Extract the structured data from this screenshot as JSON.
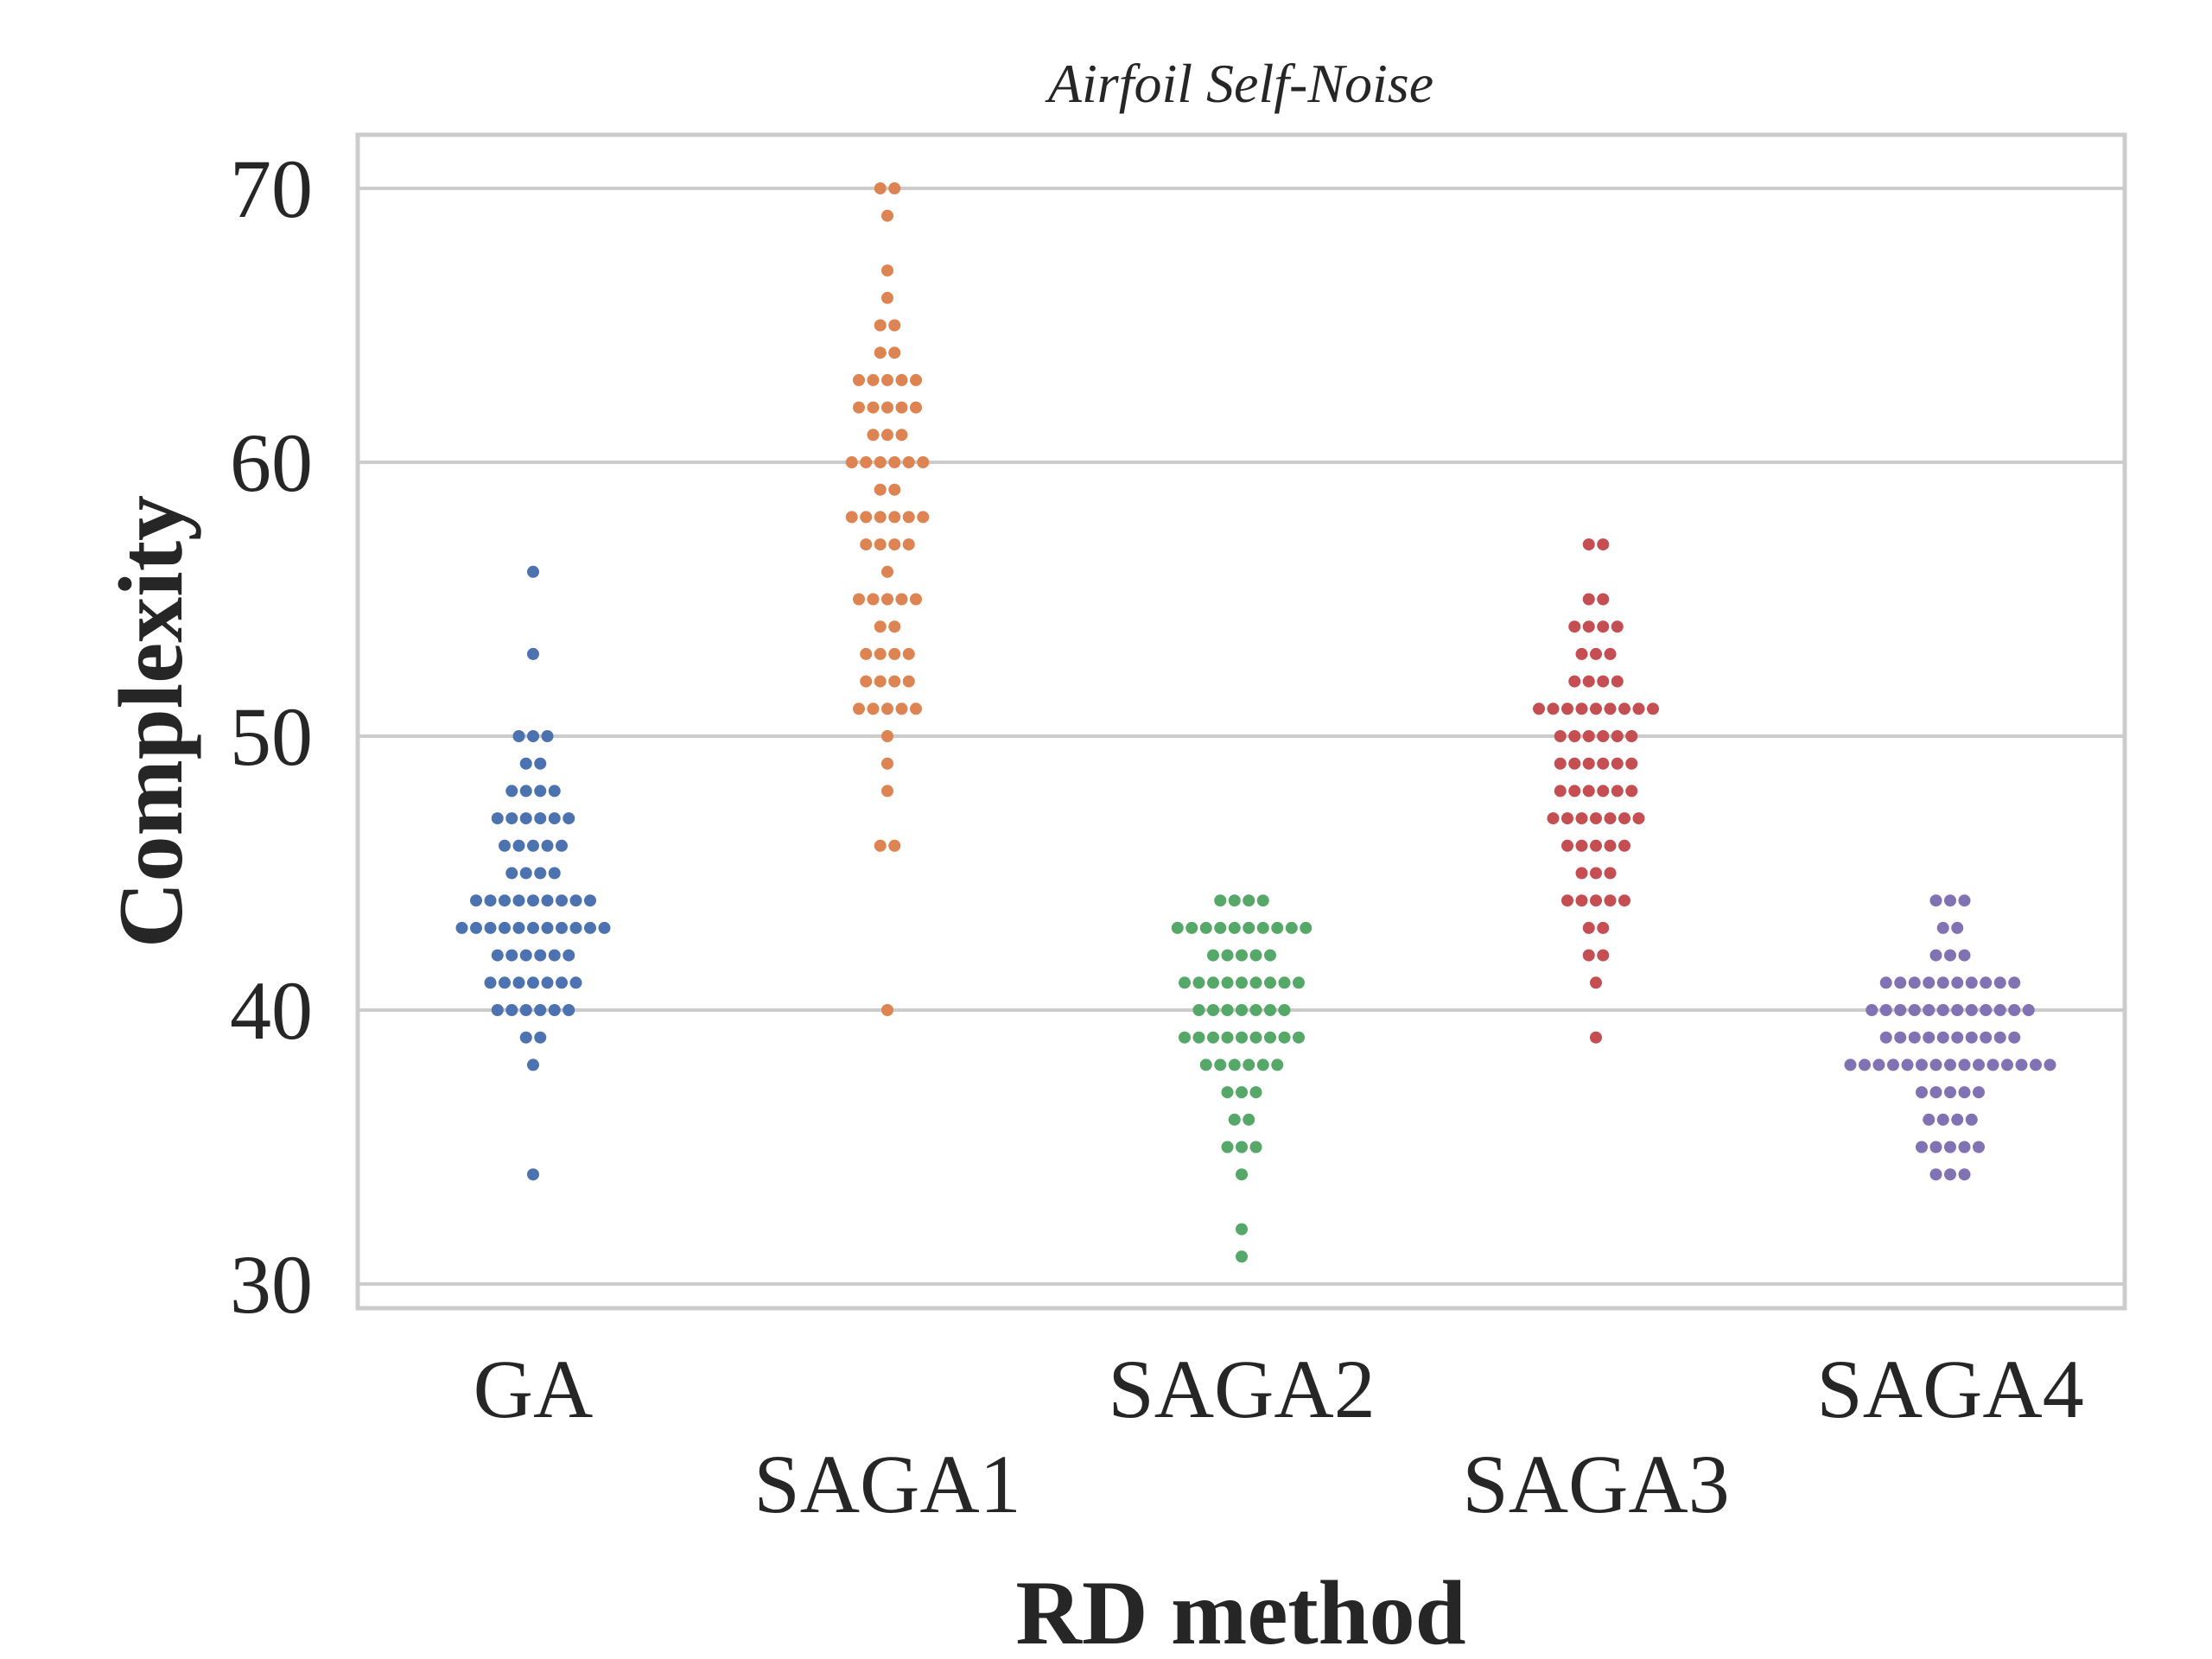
{
  "chart_data": {
    "type": "scatter",
    "subtype": "swarm",
    "title": "Airfoil Self-Noise",
    "xlabel": "RD method",
    "ylabel": "Complexity",
    "ylim": [
      29,
      73
    ],
    "yticks": [
      "30",
      "40",
      "50",
      "60",
      "70"
    ],
    "grid": true,
    "legend": "none",
    "categories": [
      "GA",
      "SAGA1",
      "SAGA2",
      "SAGA3",
      "SAGA4"
    ],
    "series": [
      {
        "category": "GA",
        "color": "#4c72b0",
        "values": [
          34,
          38,
          39,
          39,
          40,
          40,
          40,
          40,
          40,
          40,
          41,
          41,
          41,
          41,
          41,
          41,
          41,
          42,
          42,
          42,
          42,
          42,
          42,
          43,
          43,
          43,
          43,
          43,
          43,
          43,
          43,
          43,
          43,
          43,
          44,
          44,
          44,
          44,
          44,
          44,
          44,
          44,
          44,
          45,
          45,
          45,
          45,
          46,
          46,
          46,
          46,
          46,
          47,
          47,
          47,
          47,
          47,
          47,
          48,
          48,
          48,
          48,
          49,
          49,
          50,
          50,
          50,
          53,
          56
        ]
      },
      {
        "category": "SAGA1",
        "color": "#dd8452",
        "values": [
          40,
          46,
          46,
          48,
          49,
          50,
          51,
          51,
          51,
          51,
          51,
          52,
          52,
          52,
          52,
          53,
          53,
          53,
          53,
          54,
          54,
          55,
          55,
          55,
          55,
          55,
          56,
          57,
          57,
          57,
          57,
          58,
          58,
          58,
          58,
          58,
          58,
          59,
          59,
          60,
          60,
          60,
          60,
          60,
          60,
          61,
          61,
          61,
          62,
          62,
          62,
          62,
          62,
          63,
          63,
          63,
          63,
          63,
          64,
          64,
          65,
          65,
          66,
          67,
          69,
          70,
          70
        ]
      },
      {
        "category": "SAGA2",
        "color": "#55a868",
        "values": [
          31,
          32,
          34,
          35,
          35,
          35,
          36,
          36,
          37,
          37,
          37,
          38,
          38,
          38,
          38,
          38,
          38,
          39,
          39,
          39,
          39,
          39,
          39,
          39,
          39,
          39,
          40,
          40,
          40,
          40,
          40,
          40,
          40,
          41,
          41,
          41,
          41,
          41,
          41,
          41,
          41,
          41,
          42,
          42,
          42,
          42,
          42,
          43,
          43,
          43,
          43,
          43,
          43,
          43,
          43,
          43,
          43,
          44,
          44,
          44,
          44
        ]
      },
      {
        "category": "SAGA3",
        "color": "#c44e52",
        "values": [
          39,
          41,
          42,
          42,
          43,
          43,
          44,
          44,
          44,
          44,
          44,
          45,
          45,
          45,
          46,
          46,
          46,
          46,
          46,
          47,
          47,
          47,
          47,
          47,
          47,
          47,
          48,
          48,
          48,
          48,
          48,
          48,
          49,
          49,
          49,
          49,
          49,
          49,
          50,
          50,
          50,
          50,
          50,
          50,
          51,
          51,
          51,
          51,
          51,
          51,
          51,
          51,
          51,
          52,
          52,
          52,
          52,
          53,
          53,
          53,
          54,
          54,
          54,
          54,
          55,
          55,
          57,
          57
        ]
      },
      {
        "category": "SAGA4",
        "color": "#8172b3",
        "values": [
          34,
          34,
          34,
          35,
          35,
          35,
          35,
          35,
          36,
          36,
          36,
          36,
          37,
          37,
          37,
          37,
          37,
          38,
          38,
          38,
          38,
          38,
          38,
          38,
          38,
          38,
          38,
          38,
          38,
          38,
          38,
          38,
          39,
          39,
          39,
          39,
          39,
          39,
          39,
          39,
          39,
          39,
          40,
          40,
          40,
          40,
          40,
          40,
          40,
          40,
          40,
          40,
          40,
          40,
          41,
          41,
          41,
          41,
          41,
          41,
          41,
          41,
          41,
          41,
          42,
          42,
          42,
          43,
          43,
          44,
          44,
          44
        ]
      }
    ]
  }
}
